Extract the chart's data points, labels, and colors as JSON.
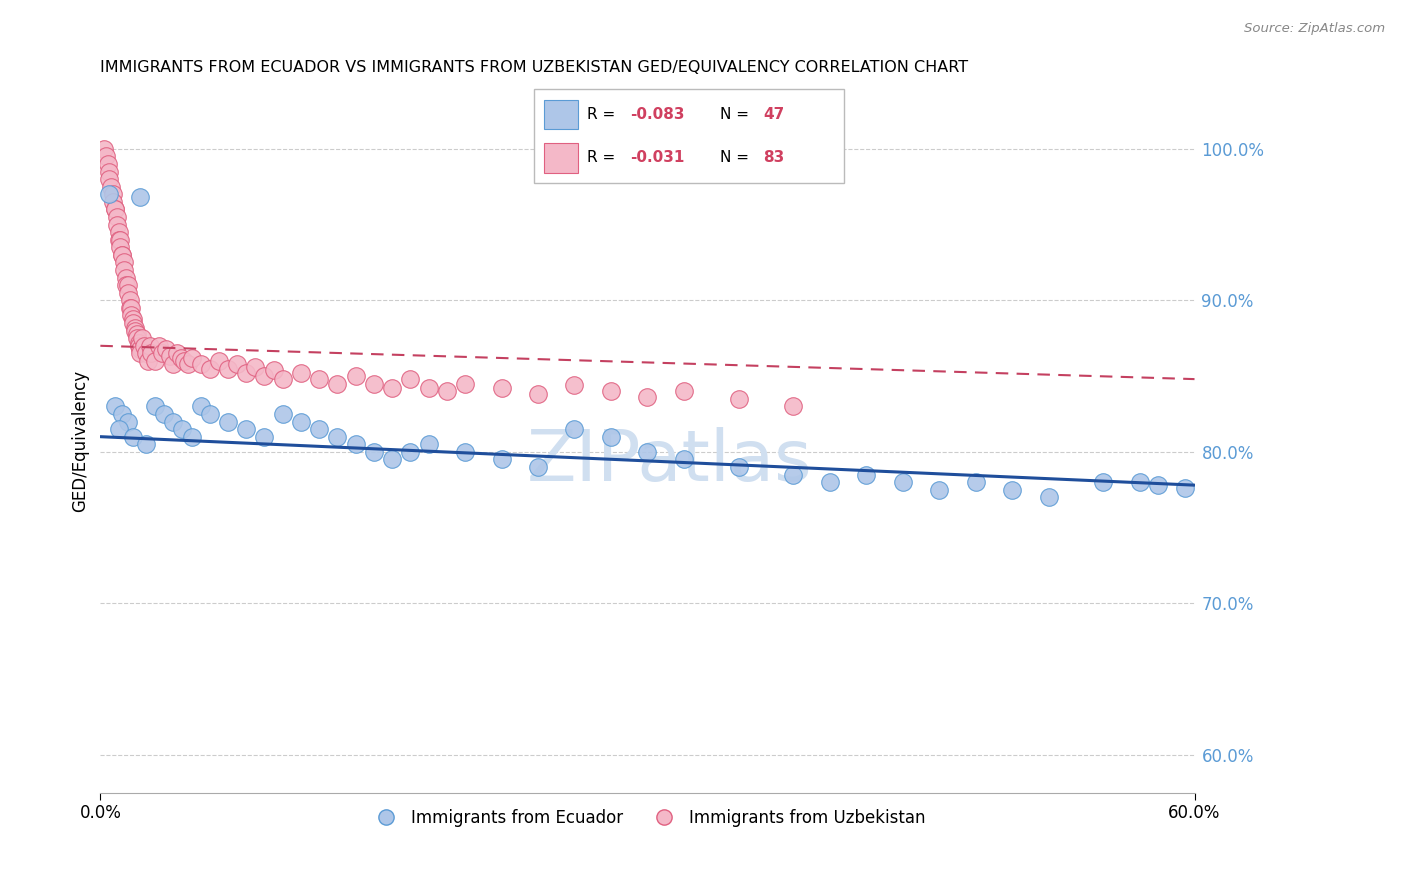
{
  "title": "IMMIGRANTS FROM ECUADOR VS IMMIGRANTS FROM UZBEKISTAN GED/EQUIVALENCY CORRELATION CHART",
  "source": "Source: ZipAtlas.com",
  "ylabel": "GED/Equivalency",
  "ylabel_right_ticks": [
    60.0,
    70.0,
    80.0,
    90.0,
    100.0
  ],
  "xmin": 0.0,
  "xmax": 0.6,
  "ymin": 0.575,
  "ymax": 1.04,
  "ecuador_color": "#aec6e8",
  "ecuador_edge": "#5b9bd5",
  "uzbekistan_color": "#f4b8c8",
  "uzbekistan_edge": "#e06080",
  "trendline_ecuador_color": "#1f4e9b",
  "trendline_uzbekistan_color": "#c44060",
  "legend_R_ecuador": "-0.083",
  "legend_N_ecuador": "47",
  "legend_R_uzbekistan": "-0.031",
  "legend_N_uzbekistan": "83",
  "ecuador_x": [
    0.005,
    0.022,
    0.008,
    0.012,
    0.015,
    0.01,
    0.018,
    0.025,
    0.03,
    0.035,
    0.04,
    0.045,
    0.05,
    0.055,
    0.06,
    0.07,
    0.08,
    0.09,
    0.1,
    0.11,
    0.12,
    0.13,
    0.14,
    0.15,
    0.16,
    0.17,
    0.18,
    0.2,
    0.22,
    0.24,
    0.26,
    0.28,
    0.3,
    0.32,
    0.35,
    0.38,
    0.4,
    0.42,
    0.44,
    0.46,
    0.48,
    0.5,
    0.52,
    0.55,
    0.57,
    0.58,
    0.595
  ],
  "ecuador_y": [
    0.97,
    0.968,
    0.83,
    0.825,
    0.82,
    0.815,
    0.81,
    0.805,
    0.83,
    0.825,
    0.82,
    0.815,
    0.81,
    0.83,
    0.825,
    0.82,
    0.815,
    0.81,
    0.825,
    0.82,
    0.815,
    0.81,
    0.805,
    0.8,
    0.795,
    0.8,
    0.805,
    0.8,
    0.795,
    0.79,
    0.815,
    0.81,
    0.8,
    0.795,
    0.79,
    0.785,
    0.78,
    0.785,
    0.78,
    0.775,
    0.78,
    0.775,
    0.77,
    0.78,
    0.78,
    0.778,
    0.776
  ],
  "uzbekistan_x": [
    0.002,
    0.003,
    0.004,
    0.005,
    0.005,
    0.006,
    0.007,
    0.007,
    0.008,
    0.008,
    0.009,
    0.009,
    0.01,
    0.01,
    0.011,
    0.011,
    0.012,
    0.012,
    0.013,
    0.013,
    0.014,
    0.014,
    0.015,
    0.015,
    0.016,
    0.016,
    0.017,
    0.017,
    0.018,
    0.018,
    0.019,
    0.019,
    0.02,
    0.02,
    0.021,
    0.021,
    0.022,
    0.022,
    0.023,
    0.024,
    0.025,
    0.026,
    0.027,
    0.028,
    0.03,
    0.032,
    0.034,
    0.036,
    0.038,
    0.04,
    0.042,
    0.044,
    0.046,
    0.048,
    0.05,
    0.055,
    0.06,
    0.065,
    0.07,
    0.075,
    0.08,
    0.085,
    0.09,
    0.095,
    0.1,
    0.11,
    0.12,
    0.13,
    0.14,
    0.15,
    0.16,
    0.17,
    0.18,
    0.19,
    0.2,
    0.22,
    0.24,
    0.26,
    0.28,
    0.3,
    0.32,
    0.35,
    0.38
  ],
  "uzbekistan_y": [
    1.0,
    0.995,
    0.99,
    0.985,
    0.98,
    0.975,
    0.97,
    0.965,
    0.96,
    0.96,
    0.955,
    0.95,
    0.945,
    0.94,
    0.94,
    0.935,
    0.93,
    0.93,
    0.925,
    0.92,
    0.915,
    0.91,
    0.91,
    0.905,
    0.9,
    0.895,
    0.895,
    0.89,
    0.888,
    0.885,
    0.882,
    0.88,
    0.878,
    0.875,
    0.872,
    0.87,
    0.868,
    0.865,
    0.875,
    0.87,
    0.865,
    0.86,
    0.87,
    0.865,
    0.86,
    0.87,
    0.865,
    0.868,
    0.863,
    0.858,
    0.865,
    0.862,
    0.86,
    0.858,
    0.862,
    0.858,
    0.855,
    0.86,
    0.855,
    0.858,
    0.852,
    0.856,
    0.85,
    0.854,
    0.848,
    0.852,
    0.848,
    0.845,
    0.85,
    0.845,
    0.842,
    0.848,
    0.842,
    0.84,
    0.845,
    0.842,
    0.838,
    0.844,
    0.84,
    0.836,
    0.84,
    0.835,
    0.83
  ],
  "watermark": "ZIPatlas",
  "watermark_color": "#d0dff0",
  "watermark_fontsize": 52
}
